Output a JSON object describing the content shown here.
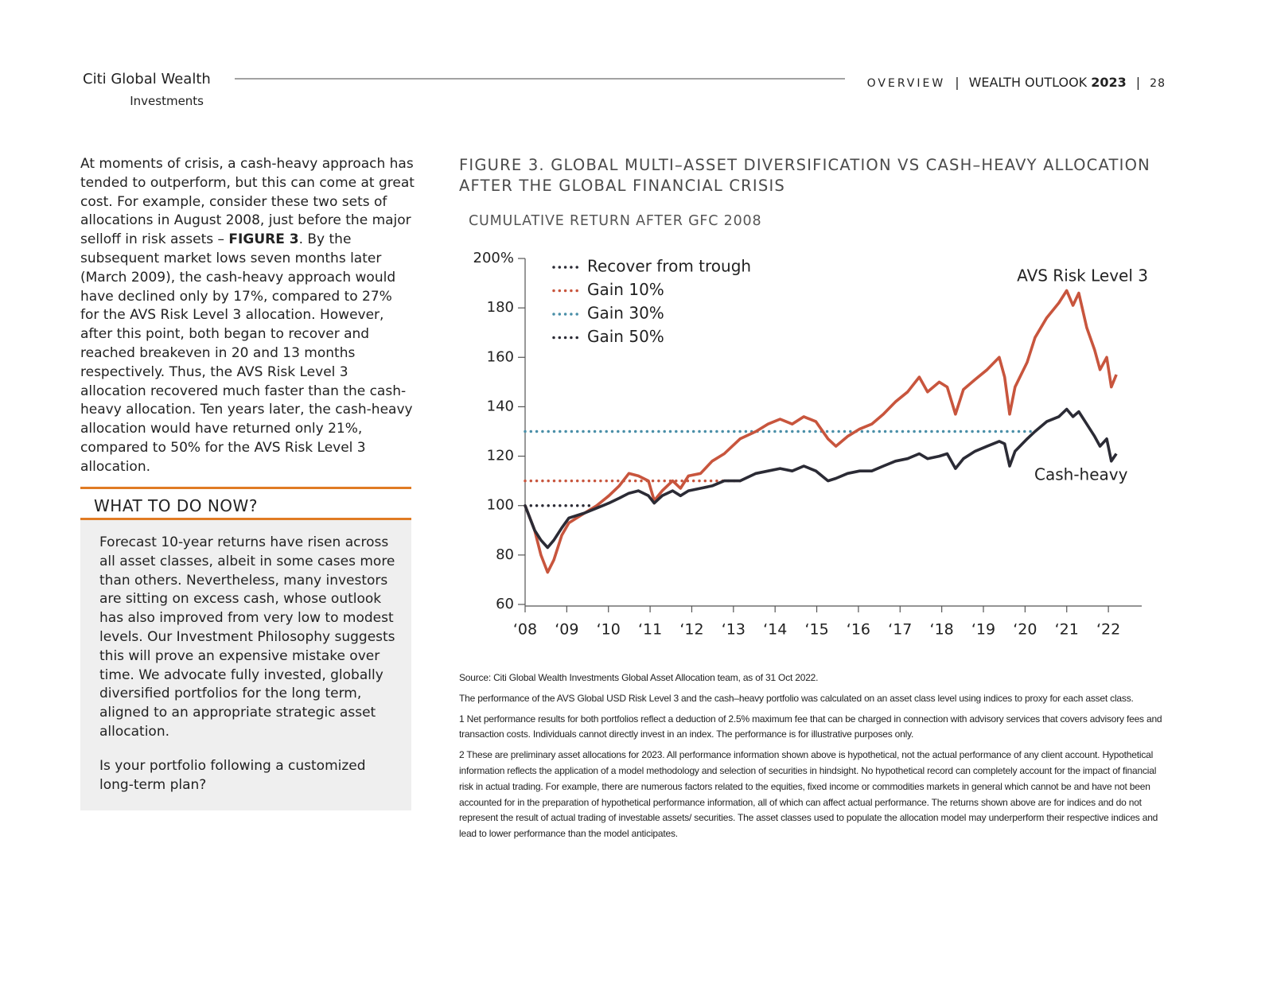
{
  "header": {
    "brand": "Citi Global Wealth",
    "brand_sub": "Investments",
    "section": "OVERVIEW",
    "publication": "WEALTH OUTLOOK",
    "year": "2023",
    "page": "28"
  },
  "body": {
    "text_before": "At moments of crisis, a cash-heavy approach has tended to outperform, but this can come at great cost. For example, consider these two sets of allocations in August 2008, just before the major selloff in risk assets – ",
    "figure_ref": "FIGURE 3",
    "text_after": ". By the subsequent market lows seven months later (March 2009), the cash-heavy approach would have declined only by 17%, compared to 27% for the AVS Risk Level 3 allocation. However, after this point, both began to recover and reached breakeven in 20 and 13 months respectively. Thus, the AVS Risk Level 3 allocation recovered much faster than the cash-heavy allocation. Ten years later, the cash-heavy allocation would have returned only 21%, compared to 50% for the AVS Risk Level 3 allocation."
  },
  "sidebar": {
    "title": "WHAT TO DO NOW?",
    "paragraphs": [
      "Forecast 10-year returns have risen across all asset classes, albeit in some cases more than others. Nevertheless, many investors are sitting on excess cash, whose outlook has also improved from very low to modest levels. Our Investment Philosophy suggests this will prove an expensive mistake over time. We advocate fully invested, globally diversified portfolios for the long term, aligned to an appropriate strategic asset allocation.",
      "Is your portfolio following a customized long-term plan?"
    ]
  },
  "chart_data": {
    "type": "line",
    "title": "FIGURE 3. GLOBAL MULTI–ASSET DIVERSIFICATION VS CASH–HEAVY ALLOCATION AFTER THE GLOBAL FINANCIAL CRISIS",
    "subtitle": "CUMULATIVE RETURN AFTER GFC 2008",
    "x": [
      2008.0,
      2008.23,
      2008.38,
      2008.54,
      2008.69,
      2008.88,
      2009.05,
      2009.43,
      2009.72,
      2010.01,
      2010.26,
      2010.49,
      2010.72,
      2010.96,
      2011.1,
      2011.29,
      2011.54,
      2011.73,
      2011.92,
      2012.21,
      2012.49,
      2012.78,
      2013.16,
      2013.54,
      2013.83,
      2014.12,
      2014.41,
      2014.69,
      2014.98,
      2015.27,
      2015.46,
      2015.74,
      2016.03,
      2016.32,
      2016.6,
      2016.89,
      2017.18,
      2017.46,
      2017.66,
      2017.94,
      2018.13,
      2018.33,
      2018.52,
      2018.8,
      2019.09,
      2019.38,
      2019.51,
      2019.63,
      2019.76,
      2020.05,
      2020.24,
      2020.52,
      2020.81,
      2021.0,
      2021.15,
      2021.29,
      2021.48,
      2021.67,
      2021.8,
      2021.96,
      2022.07,
      2022.19
    ],
    "series": [
      {
        "name": "AVS Risk Level 3",
        "color": "#c8553d",
        "values": [
          100,
          90,
          80,
          73,
          78,
          88,
          93,
          97,
          100,
          104,
          108,
          113,
          112,
          110,
          102,
          106,
          110,
          107,
          112,
          113,
          118,
          121,
          127,
          130,
          133,
          135,
          133,
          136,
          134,
          127,
          124,
          128,
          131,
          133,
          137,
          142,
          146,
          152,
          146,
          150,
          148,
          137,
          147,
          151,
          155,
          160,
          152,
          137,
          148,
          158,
          168,
          176,
          182,
          187,
          181,
          186,
          172,
          163,
          155,
          160,
          148,
          153
        ]
      },
      {
        "name": "Cash-heavy",
        "color": "#2b2b35",
        "values": [
          100,
          90,
          86,
          83,
          86,
          91,
          95,
          97,
          99,
          101,
          103,
          105,
          106,
          104,
          101,
          104,
          106,
          104,
          106,
          107,
          108,
          110,
          110,
          113,
          114,
          115,
          114,
          116,
          114,
          110,
          111,
          113,
          114,
          114,
          116,
          118,
          119,
          121,
          119,
          120,
          121,
          115,
          119,
          122,
          124,
          126,
          125,
          116,
          122,
          127,
          130,
          134,
          136,
          139,
          136,
          138,
          133,
          128,
          124,
          127,
          118,
          121
        ]
      }
    ],
    "reference_lines": [
      {
        "name": "Recover from trough",
        "color": "#2b2b35",
        "value": 100,
        "x_end": 2009.63
      },
      {
        "name": "Gain 10%",
        "color": "#c8553d",
        "value": 110,
        "x_end": 2013.26
      },
      {
        "name": "Gain 30%",
        "color": "#4a8fa8",
        "value": 130,
        "x_end": 2020.24
      },
      {
        "name": "Gain 50%",
        "color": "#2b2b35"
      }
    ],
    "xlim": [
      2008,
      2022.8
    ],
    "xticks": [
      {
        "value": 2008,
        "label": "‘08"
      },
      {
        "value": 2009,
        "label": "‘09"
      },
      {
        "value": 2010,
        "label": "‘10"
      },
      {
        "value": 2011,
        "label": "‘11"
      },
      {
        "value": 2012,
        "label": "‘12"
      },
      {
        "value": 2013,
        "label": "‘13"
      },
      {
        "value": 2014,
        "label": "‘14"
      },
      {
        "value": 2015,
        "label": "‘15"
      },
      {
        "value": 2016,
        "label": "‘16"
      },
      {
        "value": 2017,
        "label": "‘17"
      },
      {
        "value": 2018,
        "label": "‘18"
      },
      {
        "value": 2019,
        "label": "‘19"
      },
      {
        "value": 2020,
        "label": "‘20"
      },
      {
        "value": 2021,
        "label": "‘21"
      },
      {
        "value": 2022,
        "label": "‘22"
      }
    ],
    "ylim": [
      60,
      200
    ],
    "yticks": [
      60,
      80,
      100,
      120,
      140,
      160,
      180,
      {
        "value": 200,
        "label": "200%"
      }
    ],
    "grid": false,
    "footnotes": [
      "Source: Citi Global Wealth Investments Global Asset Allocation team, as of 31 Oct 2022.",
      "The performance of the AVS Global USD Risk Level 3 and the cash–heavy portfolio was calculated on an asset class level using indices to proxy for each asset class.",
      "1 Net performance results for both portfolios reflect a deduction of 2.5% maximum fee that can be charged in connection with advisory services that covers advisory fees and transaction costs. Individuals cannot directly invest in an index. The performance is for illustrative purposes only.",
      "2 These are preliminary asset allocations for 2023. All performance information shown above is hypothetical, not the actual performance of any client account. Hypothetical information reflects the application of a model methodology and selection of securities in hindsight. No hypothetical record can completely account for the impact of financial risk in actual trading. For example, there are numerous factors related to the equities, fixed income or commodities markets in general which cannot be and have not been accounted for in the preparation of hypothetical performance information, all of which can affect actual performance. The returns shown above are for indices and do not represent the result of actual trading of investable assets/ securities. The asset classes used to populate the allocation model may underperform their respective indices and lead to lower performance than the model anticipates."
    ]
  }
}
